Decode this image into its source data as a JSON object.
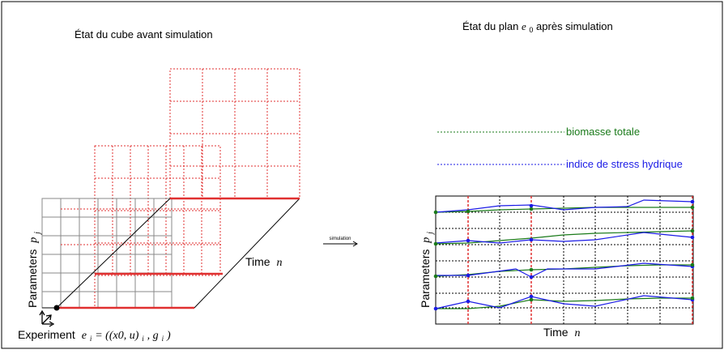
{
  "left_panel": {
    "title": "État du cube avant simulation",
    "y_axis_label": "Parameters",
    "y_axis_symbol": "p",
    "y_axis_subscript": "j",
    "depth_axis_label": "Time",
    "depth_axis_symbol": "n",
    "x_axis_label": "Experiment",
    "x_axis_formula": "e",
    "x_axis_formula_sub": "i",
    "x_axis_formula_rest": " = ((x0, u)",
    "x_axis_formula_sub2": "i",
    "x_axis_formula_end": ", g",
    "x_axis_formula_sub3": "i",
    "x_axis_formula_close": ")"
  },
  "arrow": {
    "label": "simulation"
  },
  "right_panel": {
    "title_prefix": "État du plan ",
    "title_symbol": "e",
    "title_subscript": "0",
    "title_suffix": " après simulation",
    "y_axis_label": "Parameters",
    "y_axis_symbol": "p",
    "y_axis_subscript": "j",
    "x_axis_label": "Time",
    "x_axis_symbol": "n"
  },
  "legend": [
    {
      "label": "biomasse totale",
      "color": "#1a7a1a"
    },
    {
      "label": "indice de stress hydrique",
      "color": "#1a1ae6"
    }
  ],
  "colors": {
    "grid_red": "#e03030",
    "grid_black": "#000000",
    "green": "#1a7a1a",
    "blue": "#1a1ae6",
    "grey_grid": "#888888"
  }
}
